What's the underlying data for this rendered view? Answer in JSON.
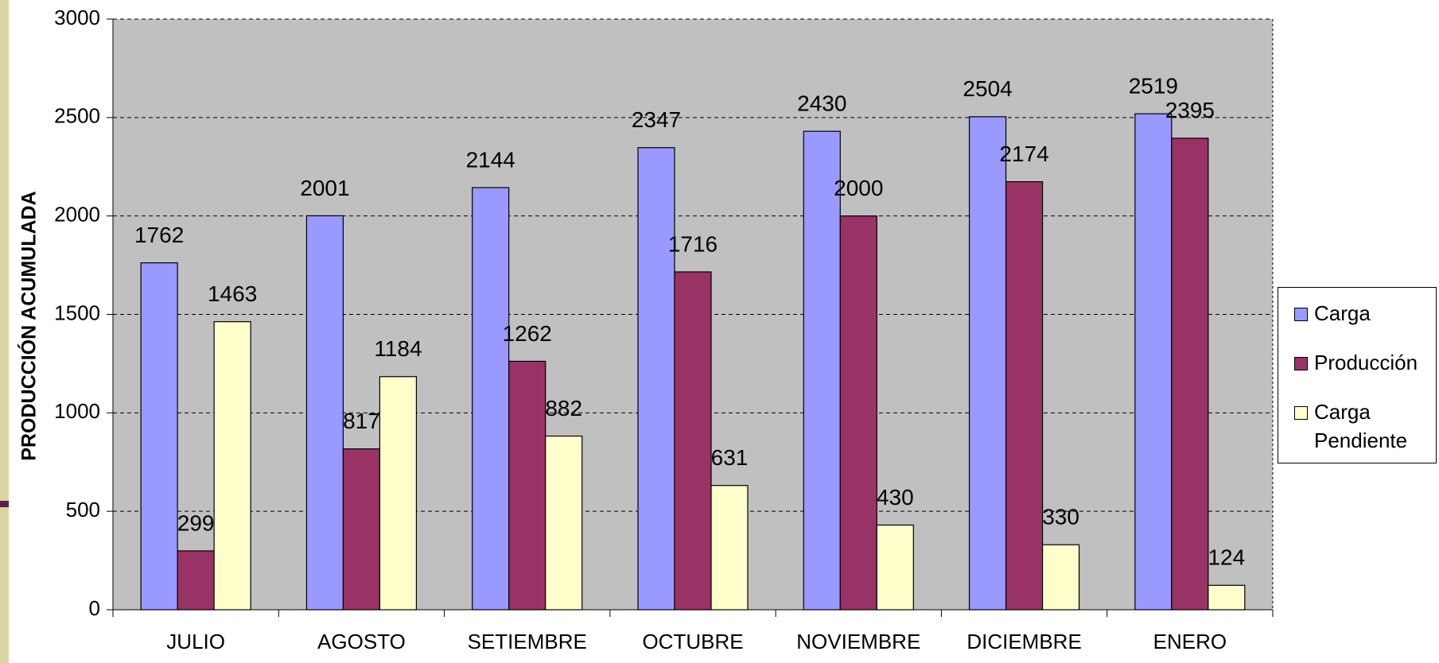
{
  "chart_data": {
    "type": "bar",
    "ylabel": "PRODUCCIÓN ACUMULADA",
    "categories": [
      "JULIO",
      "AGOSTO",
      "SETIEMBRE",
      "OCTUBRE",
      "NOVIEMBRE",
      "DICIEMBRE",
      "ENERO"
    ],
    "series": [
      {
        "name": "Carga",
        "color": "#9999ff",
        "values": [
          1762,
          2001,
          2144,
          2347,
          2430,
          2504,
          2519
        ]
      },
      {
        "name": "Producción",
        "color": "#993366",
        "values": [
          299,
          817,
          1262,
          1716,
          2000,
          2174,
          2395
        ]
      },
      {
        "name": "Carga Pendiente",
        "color": "#ffffcc",
        "values": [
          1463,
          1184,
          882,
          631,
          430,
          330,
          124
        ]
      }
    ],
    "ylim": [
      0,
      3000
    ],
    "yticks": [
      0,
      500,
      1000,
      1500,
      2000,
      2500,
      3000
    ],
    "grid": true,
    "legend": "right"
  }
}
